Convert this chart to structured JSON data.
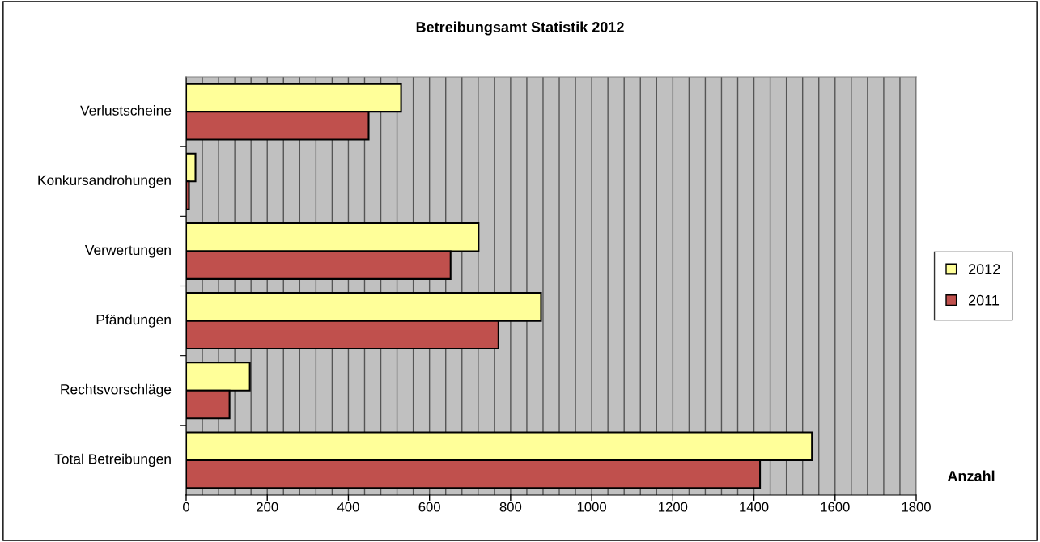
{
  "chart_data": {
    "type": "bar",
    "orientation": "horizontal",
    "title": "Betreibungsamt Statistik 2012",
    "xlabel": "Anzahl",
    "categories": [
      "Verlustscheine",
      "Konkursandrohungen",
      "Verwertungen",
      "Pfändungen",
      "Rechtsvorschläge",
      "Total Betreibungen"
    ],
    "series": [
      {
        "name": "2012",
        "color": "#ffff99",
        "values": [
          530,
          23,
          721,
          875,
          157,
          1543
        ]
      },
      {
        "name": "2011",
        "color": "#c0504d",
        "values": [
          450,
          7,
          652,
          770,
          107,
          1415
        ]
      }
    ],
    "xlim": [
      0,
      1800
    ],
    "xticks": [
      0,
      {
        "value": 40,
        "label": null
      },
      {
        "value": 80,
        "label": null
      },
      {
        "value": 120,
        "label": null
      },
      {
        "value": 160,
        "label": null
      },
      200,
      {
        "value": 240,
        "label": null
      },
      {
        "value": 280,
        "label": null
      },
      {
        "value": 320,
        "label": null
      },
      {
        "value": 360,
        "label": null
      },
      400,
      {
        "value": 440,
        "label": null
      },
      {
        "value": 480,
        "label": null
      },
      {
        "value": 520,
        "label": null
      },
      {
        "value": 560,
        "label": null
      },
      600,
      {
        "value": 640,
        "label": null
      },
      {
        "value": 680,
        "label": null
      },
      {
        "value": 720,
        "label": null
      },
      {
        "value": 760,
        "label": null
      },
      800,
      {
        "value": 840,
        "label": null
      },
      {
        "value": 880,
        "label": null
      },
      {
        "value": 920,
        "label": null
      },
      {
        "value": 960,
        "label": null
      },
      1000,
      {
        "value": 1040,
        "label": null
      },
      {
        "value": 1080,
        "label": null
      },
      {
        "value": 1120,
        "label": null
      },
      {
        "value": 1160,
        "label": null
      },
      1200,
      {
        "value": 1240,
        "label": null
      },
      {
        "value": 1280,
        "label": null
      },
      {
        "value": 1320,
        "label": null
      },
      {
        "value": 1360,
        "label": null
      },
      1400,
      {
        "value": 1440,
        "label": null
      },
      {
        "value": 1480,
        "label": null
      },
      {
        "value": 1520,
        "label": null
      },
      {
        "value": 1560,
        "label": null
      },
      1600,
      {
        "value": 1640,
        "label": null
      },
      {
        "value": 1680,
        "label": null
      },
      {
        "value": 1720,
        "label": null
      },
      {
        "value": 1760,
        "label": null
      },
      1800
    ],
    "grid": "x",
    "legend": "right"
  }
}
